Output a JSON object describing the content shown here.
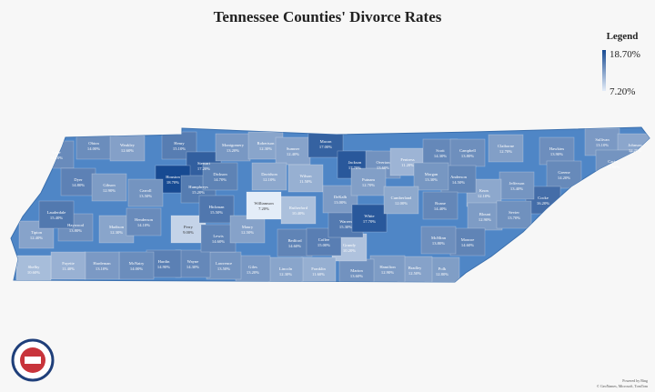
{
  "header": {
    "title": "Tennessee Counties' Divorce Rates"
  },
  "legend": {
    "title": "Legend",
    "max": {
      "value": 18.7,
      "label": "18.70%"
    },
    "min": {
      "value": 7.2,
      "label": "7.20%"
    },
    "high_color": "#174a92",
    "low_color": "#e4edf8"
  },
  "counties": [
    {
      "name": "Lake",
      "value": {
        "value": 14.1,
        "label": "14.10%"
      }
    },
    {
      "name": "Obion",
      "value": {
        "value": 14.0,
        "label": "14.00%"
      }
    },
    {
      "name": "Weakley",
      "value": {
        "value": 12.6,
        "label": "12.60%"
      }
    },
    {
      "name": "Henry",
      "value": {
        "value": 15.1,
        "label": "15.10%"
      }
    },
    {
      "name": "Stewart",
      "value": {
        "value": 17.2,
        "label": "17.20%"
      }
    },
    {
      "name": "Houston",
      "value": {
        "value": 18.7,
        "label": "18.70%"
      }
    },
    {
      "name": "Montgomery",
      "value": {
        "value": 13.2,
        "label": "13.20%"
      }
    },
    {
      "name": "Robertson",
      "value": {
        "value": 12.3,
        "label": "12.30%"
      }
    },
    {
      "name": "Sumner",
      "value": {
        "value": 12.4,
        "label": "12.40%"
      }
    },
    {
      "name": "Macon",
      "value": {
        "value": 17.0,
        "label": "17.00%"
      }
    },
    {
      "name": "Jackson",
      "value": {
        "value": 17.7,
        "label": "17.70%"
      }
    },
    {
      "name": "Overton",
      "value": {
        "value": 13.6,
        "label": "13.60%"
      }
    },
    {
      "name": "Fentress",
      "value": {
        "value": 11.2,
        "label": "11.20%"
      }
    },
    {
      "name": "Scott",
      "value": {
        "value": 14.3,
        "label": "14.30%"
      }
    },
    {
      "name": "Campbell",
      "value": {
        "value": 13.8,
        "label": "13.80%"
      }
    },
    {
      "name": "Claiborne",
      "value": {
        "value": 12.7,
        "label": "12.70%"
      }
    },
    {
      "name": "Hawkins",
      "value": {
        "value": 13.9,
        "label": "13.90%"
      }
    },
    {
      "name": "Sullivan",
      "value": {
        "value": 13.1,
        "label": "13.10%"
      }
    },
    {
      "name": "Johnson",
      "value": {
        "value": 12.2,
        "label": "12.20%"
      }
    },
    {
      "name": "Carter",
      "value": {
        "value": 13.5,
        "label": "13.50%"
      }
    },
    {
      "name": "Greene",
      "value": {
        "value": 14.2,
        "label": "14.20%"
      }
    },
    {
      "name": "Cocke",
      "value": {
        "value": 16.2,
        "label": "16.20%"
      }
    },
    {
      "name": "Jefferson",
      "value": {
        "value": 13.4,
        "label": "13.40%"
      }
    },
    {
      "name": "Knox",
      "value": {
        "value": 12.1,
        "label": "12.10%"
      }
    },
    {
      "name": "Anderson",
      "value": {
        "value": 14.5,
        "label": "14.50%"
      }
    },
    {
      "name": "Morgan",
      "value": {
        "value": 13.3,
        "label": "13.30%"
      }
    },
    {
      "name": "Roane",
      "value": {
        "value": 14.4,
        "label": "14.40%"
      }
    },
    {
      "name": "Blount",
      "value": {
        "value": 12.9,
        "label": "12.90%"
      }
    },
    {
      "name": "Sevier",
      "value": {
        "value": 13.7,
        "label": "13.70%"
      }
    },
    {
      "name": "Monroe",
      "value": {
        "value": 14.6,
        "label": "14.60%"
      }
    },
    {
      "name": "McMinn",
      "value": {
        "value": 13.8,
        "label": "13.80%"
      }
    },
    {
      "name": "Polk",
      "value": {
        "value": 12.8,
        "label": "12.80%"
      }
    },
    {
      "name": "Bradley",
      "value": {
        "value": 12.5,
        "label": "12.50%"
      }
    },
    {
      "name": "Hamilton",
      "value": {
        "value": 12.9,
        "label": "12.90%"
      }
    },
    {
      "name": "Marion",
      "value": {
        "value": 13.6,
        "label": "13.60%"
      }
    },
    {
      "name": "Grundy",
      "value": {
        "value": 10.2,
        "label": "10.20%"
      }
    },
    {
      "name": "Franklin",
      "value": {
        "value": 11.6,
        "label": "11.60%"
      }
    },
    {
      "name": "Lincoln",
      "value": {
        "value": 12.3,
        "label": "12.30%"
      }
    },
    {
      "name": "Giles",
      "value": {
        "value": 13.2,
        "label": "13.20%"
      }
    },
    {
      "name": "Lawrence",
      "value": {
        "value": 13.5,
        "label": "13.50%"
      }
    },
    {
      "name": "Wayne",
      "value": {
        "value": 14.3,
        "label": "14.30%"
      }
    },
    {
      "name": "Hardin",
      "value": {
        "value": 14.9,
        "label": "14.90%"
      }
    },
    {
      "name": "McNairy",
      "value": {
        "value": 14.0,
        "label": "14.00%"
      }
    },
    {
      "name": "Hardeman",
      "value": {
        "value": 13.1,
        "label": "13.10%"
      }
    },
    {
      "name": "Fayette",
      "value": {
        "value": 11.4,
        "label": "11.40%"
      }
    },
    {
      "name": "Shelby",
      "value": {
        "value": 10.6,
        "label": "10.60%"
      }
    },
    {
      "name": "Tipton",
      "value": {
        "value": 12.4,
        "label": "12.40%"
      }
    },
    {
      "name": "Haywood",
      "value": {
        "value": 13.8,
        "label": "13.80%"
      }
    },
    {
      "name": "Lauderdale",
      "value": {
        "value": 15.4,
        "label": "15.40%"
      }
    },
    {
      "name": "Dyer",
      "value": {
        "value": 14.8,
        "label": "14.80%"
      }
    },
    {
      "name": "Gibson",
      "value": {
        "value": 12.9,
        "label": "12.90%"
      }
    },
    {
      "name": "Madison",
      "value": {
        "value": 12.3,
        "label": "12.30%"
      }
    },
    {
      "name": "Carroll",
      "value": {
        "value": 13.5,
        "label": "13.50%"
      }
    },
    {
      "name": "Henderson",
      "value": {
        "value": 14.1,
        "label": "14.10%"
      }
    },
    {
      "name": "Perry",
      "value": {
        "value": 9.0,
        "label": "9.00%"
      }
    },
    {
      "name": "Humphreys",
      "value": {
        "value": 15.2,
        "label": "15.20%"
      }
    },
    {
      "name": "Dickson",
      "value": {
        "value": 14.7,
        "label": "14.70%"
      }
    },
    {
      "name": "Hickman",
      "value": {
        "value": 15.5,
        "label": "15.50%"
      }
    },
    {
      "name": "Lewis",
      "value": {
        "value": 14.6,
        "label": "14.60%"
      }
    },
    {
      "name": "Maury",
      "value": {
        "value": 12.5,
        "label": "12.50%"
      }
    },
    {
      "name": "Williamson",
      "value": {
        "value": 7.2,
        "label": "7.20%"
      }
    },
    {
      "name": "Davidson",
      "value": {
        "value": 12.1,
        "label": "12.10%"
      }
    },
    {
      "name": "Rutherford",
      "value": {
        "value": 10.4,
        "label": "10.40%"
      }
    },
    {
      "name": "Wilson",
      "value": {
        "value": 11.5,
        "label": "11.50%"
      }
    },
    {
      "name": "Bedford",
      "value": {
        "value": 14.6,
        "label": "14.60%"
      }
    },
    {
      "name": "Coffee",
      "value": {
        "value": 15.0,
        "label": "15.00%"
      }
    },
    {
      "name": "Warren",
      "value": {
        "value": 15.3,
        "label": "15.30%"
      }
    },
    {
      "name": "DeKalb",
      "value": {
        "value": 13.0,
        "label": "13.00%"
      }
    },
    {
      "name": "Putnam",
      "value": {
        "value": 12.7,
        "label": "12.70%"
      }
    },
    {
      "name": "White",
      "value": {
        "value": 17.7,
        "label": "17.70%"
      }
    },
    {
      "name": "Cumberland",
      "value": {
        "value": 12.0,
        "label": "12.00%"
      }
    }
  ],
  "attribution": {
    "line1": "Powered by Bing",
    "line2": "© GeoNames, Microsoft, TomTom"
  }
}
